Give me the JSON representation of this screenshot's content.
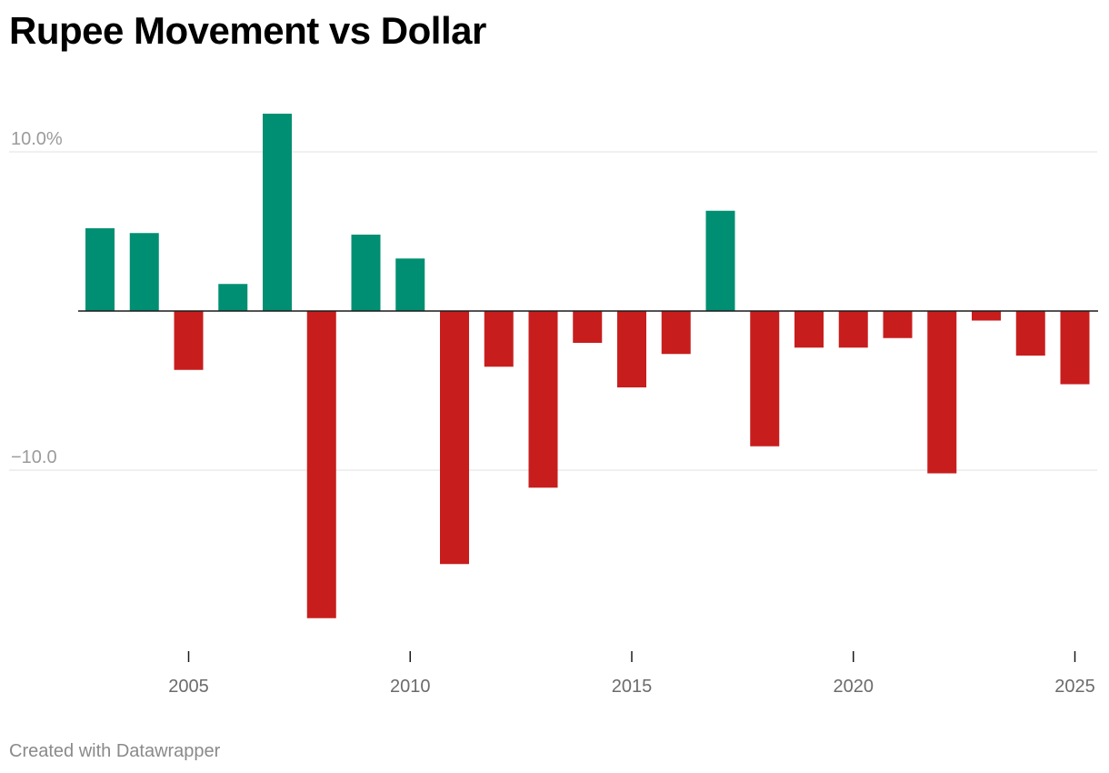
{
  "chart_data": {
    "type": "bar",
    "title": "Rupee Movement vs Dollar",
    "xlabel": "",
    "ylabel": "",
    "ylim": [
      -20,
      12.5
    ],
    "yticks": [
      {
        "value": 10,
        "label": "10.0%"
      },
      {
        "value": -10,
        "label": "−10.0"
      }
    ],
    "xticks": [
      {
        "value": 2005,
        "label": "2005"
      },
      {
        "value": 2010,
        "label": "2010"
      },
      {
        "value": 2015,
        "label": "2015"
      },
      {
        "value": 2020,
        "label": "2020"
      },
      {
        "value": 2025,
        "label": "2025"
      }
    ],
    "categories": [
      2003,
      2004,
      2005,
      2006,
      2007,
      2008,
      2009,
      2010,
      2011,
      2012,
      2013,
      2014,
      2015,
      2016,
      2017,
      2018,
      2019,
      2020,
      2021,
      2022,
      2023,
      2024,
      2025
    ],
    "values": [
      5.2,
      4.9,
      -3.7,
      1.7,
      12.4,
      -19.3,
      4.8,
      3.3,
      -15.9,
      -3.5,
      -11.1,
      -2.0,
      -4.8,
      -2.7,
      6.3,
      -8.5,
      -2.3,
      -2.3,
      -1.7,
      -10.2,
      -0.6,
      -2.8,
      -4.6
    ],
    "positive_color": "#008f72",
    "negative_color": "#c71e1d",
    "zero_line": true,
    "grid": true
  },
  "footer": "Created with Datawrapper"
}
